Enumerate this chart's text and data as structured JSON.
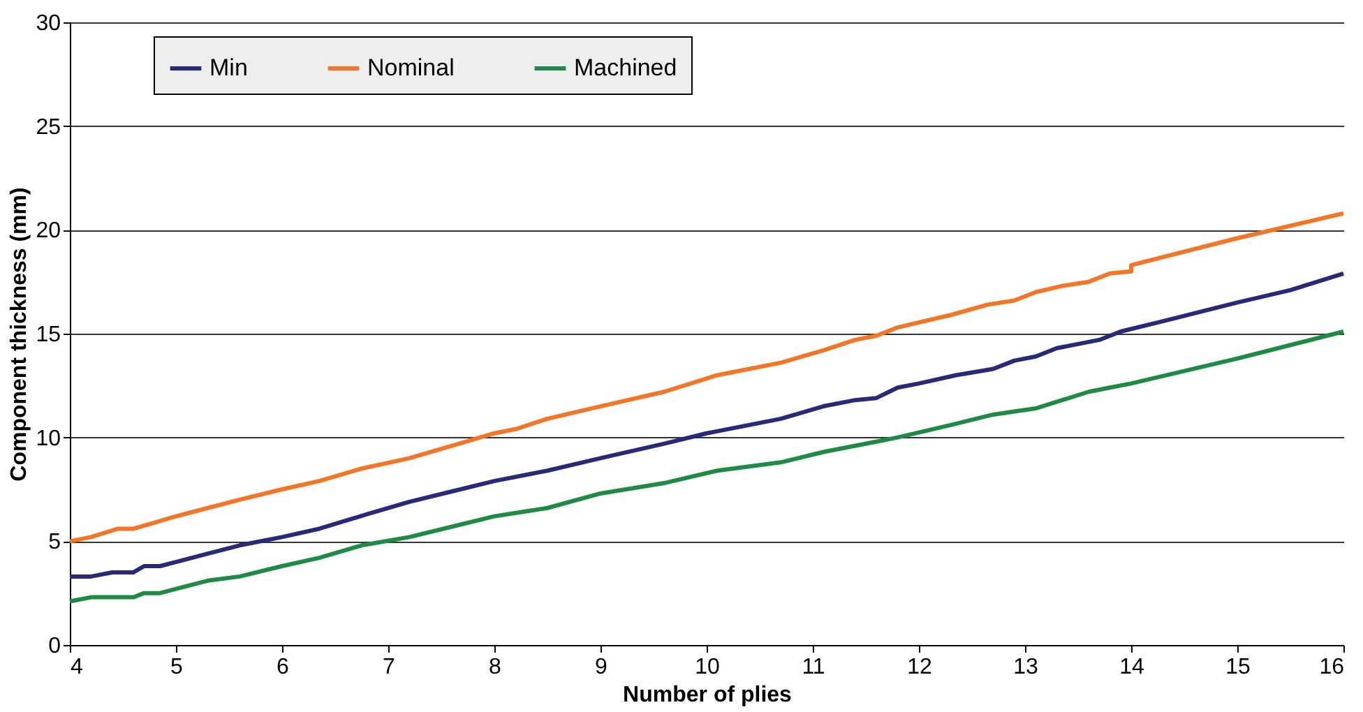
{
  "chart_data": {
    "type": "line",
    "xlabel": "Number of plies",
    "ylabel": "Component thickness (mm)",
    "xlim": [
      4,
      16
    ],
    "xticks": [
      4,
      5,
      6,
      7,
      8,
      9,
      10,
      11,
      12,
      13,
      14,
      15,
      16
    ],
    "ylim": [
      0,
      30
    ],
    "yticks": [
      0,
      5,
      10,
      15,
      20,
      25,
      30
    ],
    "grid": "y",
    "legend": "top",
    "line_style": "solid",
    "marker": "none",
    "series": [
      {
        "name": "Min",
        "color": "#262a78",
        "x": [
          4,
          4.2,
          4.4,
          4.6,
          4.7,
          4.85,
          5,
          5.3,
          5.6,
          6,
          6.35,
          6.8,
          7.2,
          7.6,
          8,
          8.5,
          9,
          9.6,
          10,
          10.7,
          11.1,
          11.4,
          11.6,
          11.8,
          12,
          12.35,
          12.7,
          12.9,
          13.1,
          13.3,
          13.7,
          13.9,
          14.3,
          15,
          15.5,
          16
        ],
        "values": [
          3.3,
          3.3,
          3.5,
          3.5,
          3.8,
          3.8,
          4.0,
          4.4,
          4.8,
          5.2,
          5.6,
          6.3,
          6.9,
          7.4,
          7.9,
          8.4,
          9.0,
          9.7,
          10.2,
          10.9,
          11.5,
          11.8,
          11.9,
          12.4,
          12.6,
          13.0,
          13.3,
          13.7,
          13.9,
          14.3,
          14.7,
          15.1,
          15.6,
          16.5,
          17.1,
          17.9
        ]
      },
      {
        "name": "Nominal",
        "color": "#f47526",
        "x": [
          4,
          4.2,
          4.45,
          4.6,
          4.8,
          5,
          5.3,
          5.6,
          6,
          6.35,
          6.75,
          7.2,
          7.6,
          8,
          8.2,
          8.5,
          9,
          9.6,
          10.1,
          10.7,
          11.1,
          11.4,
          11.6,
          11.8,
          12.3,
          12.65,
          12.9,
          13.1,
          13.35,
          13.6,
          13.8,
          14,
          14,
          15,
          16
        ],
        "values": [
          5.0,
          5.2,
          5.6,
          5.6,
          5.9,
          6.2,
          6.6,
          7.0,
          7.5,
          7.9,
          8.5,
          9.0,
          9.6,
          10.2,
          10.4,
          10.9,
          11.5,
          12.2,
          13.0,
          13.6,
          14.2,
          14.7,
          14.9,
          15.3,
          15.9,
          16.4,
          16.6,
          17.0,
          17.3,
          17.5,
          17.9,
          18.0,
          18.3,
          19.6,
          20.8
        ]
      },
      {
        "name": "Machined",
        "color": "#1d8a45",
        "x": [
          4,
          4.2,
          4.6,
          4.7,
          4.85,
          5,
          5.3,
          5.6,
          6,
          6.35,
          6.75,
          7.2,
          7.6,
          8,
          8.5,
          9,
          9.6,
          10.1,
          10.7,
          11.1,
          11.8,
          12.3,
          12.7,
          13.1,
          13.35,
          13.6,
          13.8,
          14,
          15,
          16
        ],
        "values": [
          2.1,
          2.3,
          2.3,
          2.5,
          2.5,
          2.7,
          3.1,
          3.3,
          3.8,
          4.2,
          4.8,
          5.2,
          5.7,
          6.2,
          6.6,
          7.3,
          7.8,
          8.4,
          8.8,
          9.3,
          10.0,
          10.6,
          11.1,
          11.4,
          11.8,
          12.2,
          12.4,
          12.6,
          13.8,
          15.1
        ]
      }
    ]
  }
}
